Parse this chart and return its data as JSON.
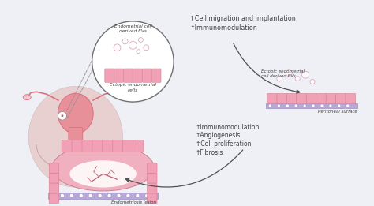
{
  "bg_color": "#eef0f5",
  "pink_cell": "#f2a0b5",
  "pink_light": "#f5c5d0",
  "pink_dome": "#f0b0c0",
  "purple_base": "#b8a8d8",
  "purple_dot": "#a898c8",
  "arrow_color": "#505050",
  "text_color": "#404040",
  "text1_lines": [
    "↑Cell migration and implantation",
    "↑Immunomodulation"
  ],
  "text2_lines": [
    "↑Immunomodulation",
    "↑Angiogenesis",
    "↑Cell proliferation",
    "↑Fibrosis"
  ],
  "label_ectopic_ev": "Endometrial cell\nderived EVs",
  "label_ectopic_cells": "Ectopic endometrial\ncells",
  "label_ectopic3": "Ectopic endometrial\ncell derived EVs",
  "label_peritoneal": "Peritoneal surface",
  "label_lesion": "Endometriosis lesion",
  "circle_outline": "#707070",
  "uterus_pink": "#e8909a",
  "uterus_body": "#da7080",
  "skin_color": "#e8d0d0"
}
